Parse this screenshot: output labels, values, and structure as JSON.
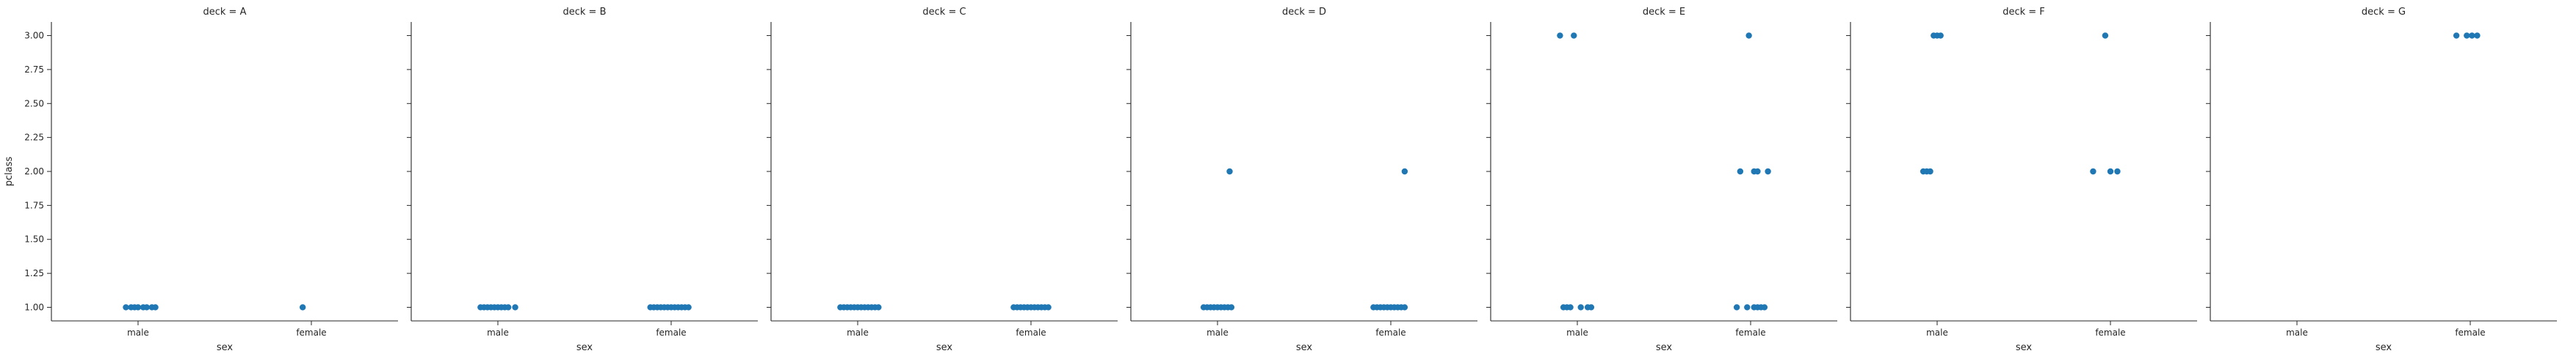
{
  "chart_data": {
    "type": "scatter",
    "kind": "strip",
    "x_var": "sex",
    "y_var": "pclass",
    "xlabel": "sex",
    "ylabel": "pclass",
    "categories": [
      "male",
      "female"
    ],
    "yticks": [
      "1.00",
      "1.25",
      "1.50",
      "1.75",
      "2.00",
      "2.25",
      "2.50",
      "2.75",
      "3.00"
    ],
    "ylim": [
      0.9,
      3.1
    ],
    "grid": false,
    "legend": "none",
    "point_color": "#1f77b4",
    "facets": [
      {
        "title": "deck = A",
        "points": [
          {
            "sex": "male",
            "jitter": -0.07,
            "pclass": 1
          },
          {
            "sex": "male",
            "jitter": -0.04,
            "pclass": 1
          },
          {
            "sex": "male",
            "jitter": -0.02,
            "pclass": 1
          },
          {
            "sex": "male",
            "jitter": 0.0,
            "pclass": 1
          },
          {
            "sex": "male",
            "jitter": 0.03,
            "pclass": 1
          },
          {
            "sex": "male",
            "jitter": 0.05,
            "pclass": 1
          },
          {
            "sex": "male",
            "jitter": 0.08,
            "pclass": 1
          },
          {
            "sex": "male",
            "jitter": 0.1,
            "pclass": 1
          },
          {
            "sex": "female",
            "jitter": -0.05,
            "pclass": 1
          }
        ]
      },
      {
        "title": "deck = B",
        "points": [
          {
            "sex": "male",
            "jitter": -0.1,
            "pclass": 1
          },
          {
            "sex": "male",
            "jitter": -0.08,
            "pclass": 1
          },
          {
            "sex": "male",
            "jitter": -0.06,
            "pclass": 1
          },
          {
            "sex": "male",
            "jitter": -0.04,
            "pclass": 1
          },
          {
            "sex": "male",
            "jitter": -0.02,
            "pclass": 1
          },
          {
            "sex": "male",
            "jitter": 0.0,
            "pclass": 1
          },
          {
            "sex": "male",
            "jitter": 0.02,
            "pclass": 1
          },
          {
            "sex": "male",
            "jitter": 0.04,
            "pclass": 1
          },
          {
            "sex": "male",
            "jitter": 0.06,
            "pclass": 1
          },
          {
            "sex": "male",
            "jitter": 0.1,
            "pclass": 1
          },
          {
            "sex": "female",
            "jitter": -0.12,
            "pclass": 1
          },
          {
            "sex": "female",
            "jitter": -0.1,
            "pclass": 1
          },
          {
            "sex": "female",
            "jitter": -0.08,
            "pclass": 1
          },
          {
            "sex": "female",
            "jitter": -0.06,
            "pclass": 1
          },
          {
            "sex": "female",
            "jitter": -0.04,
            "pclass": 1
          },
          {
            "sex": "female",
            "jitter": -0.02,
            "pclass": 1
          },
          {
            "sex": "female",
            "jitter": 0.0,
            "pclass": 1
          },
          {
            "sex": "female",
            "jitter": 0.02,
            "pclass": 1
          },
          {
            "sex": "female",
            "jitter": 0.04,
            "pclass": 1
          },
          {
            "sex": "female",
            "jitter": 0.06,
            "pclass": 1
          },
          {
            "sex": "female",
            "jitter": 0.08,
            "pclass": 1
          },
          {
            "sex": "female",
            "jitter": 0.1,
            "pclass": 1
          }
        ]
      },
      {
        "title": "deck = C",
        "points": [
          {
            "sex": "male",
            "jitter": -0.1,
            "pclass": 1
          },
          {
            "sex": "male",
            "jitter": -0.08,
            "pclass": 1
          },
          {
            "sex": "male",
            "jitter": -0.06,
            "pclass": 1
          },
          {
            "sex": "male",
            "jitter": -0.04,
            "pclass": 1
          },
          {
            "sex": "male",
            "jitter": -0.02,
            "pclass": 1
          },
          {
            "sex": "male",
            "jitter": 0.0,
            "pclass": 1
          },
          {
            "sex": "male",
            "jitter": 0.02,
            "pclass": 1
          },
          {
            "sex": "male",
            "jitter": 0.04,
            "pclass": 1
          },
          {
            "sex": "male",
            "jitter": 0.06,
            "pclass": 1
          },
          {
            "sex": "male",
            "jitter": 0.08,
            "pclass": 1
          },
          {
            "sex": "male",
            "jitter": 0.1,
            "pclass": 1
          },
          {
            "sex": "male",
            "jitter": 0.12,
            "pclass": 1
          },
          {
            "sex": "female",
            "jitter": -0.1,
            "pclass": 1
          },
          {
            "sex": "female",
            "jitter": -0.08,
            "pclass": 1
          },
          {
            "sex": "female",
            "jitter": -0.06,
            "pclass": 1
          },
          {
            "sex": "female",
            "jitter": -0.04,
            "pclass": 1
          },
          {
            "sex": "female",
            "jitter": -0.02,
            "pclass": 1
          },
          {
            "sex": "female",
            "jitter": 0.0,
            "pclass": 1
          },
          {
            "sex": "female",
            "jitter": 0.02,
            "pclass": 1
          },
          {
            "sex": "female",
            "jitter": 0.04,
            "pclass": 1
          },
          {
            "sex": "female",
            "jitter": 0.06,
            "pclass": 1
          },
          {
            "sex": "female",
            "jitter": 0.08,
            "pclass": 1
          },
          {
            "sex": "female",
            "jitter": 0.1,
            "pclass": 1
          }
        ]
      },
      {
        "title": "deck = D",
        "points": [
          {
            "sex": "male",
            "jitter": -0.08,
            "pclass": 1
          },
          {
            "sex": "male",
            "jitter": -0.06,
            "pclass": 1
          },
          {
            "sex": "male",
            "jitter": -0.04,
            "pclass": 1
          },
          {
            "sex": "male",
            "jitter": -0.02,
            "pclass": 1
          },
          {
            "sex": "male",
            "jitter": 0.0,
            "pclass": 1
          },
          {
            "sex": "male",
            "jitter": 0.02,
            "pclass": 1
          },
          {
            "sex": "male",
            "jitter": 0.04,
            "pclass": 1
          },
          {
            "sex": "male",
            "jitter": 0.06,
            "pclass": 1
          },
          {
            "sex": "male",
            "jitter": 0.08,
            "pclass": 1
          },
          {
            "sex": "male",
            "jitter": 0.07,
            "pclass": 2
          },
          {
            "sex": "female",
            "jitter": -0.1,
            "pclass": 1
          },
          {
            "sex": "female",
            "jitter": -0.08,
            "pclass": 1
          },
          {
            "sex": "female",
            "jitter": -0.06,
            "pclass": 1
          },
          {
            "sex": "female",
            "jitter": -0.04,
            "pclass": 1
          },
          {
            "sex": "female",
            "jitter": -0.02,
            "pclass": 1
          },
          {
            "sex": "female",
            "jitter": 0.0,
            "pclass": 1
          },
          {
            "sex": "female",
            "jitter": 0.02,
            "pclass": 1
          },
          {
            "sex": "female",
            "jitter": 0.04,
            "pclass": 1
          },
          {
            "sex": "female",
            "jitter": 0.06,
            "pclass": 1
          },
          {
            "sex": "female",
            "jitter": 0.08,
            "pclass": 1
          },
          {
            "sex": "female",
            "jitter": 0.08,
            "pclass": 2
          }
        ]
      },
      {
        "title": "deck = E",
        "points": [
          {
            "sex": "male",
            "jitter": -0.08,
            "pclass": 1
          },
          {
            "sex": "male",
            "jitter": -0.06,
            "pclass": 1
          },
          {
            "sex": "male",
            "jitter": -0.04,
            "pclass": 1
          },
          {
            "sex": "male",
            "jitter": 0.02,
            "pclass": 1
          },
          {
            "sex": "male",
            "jitter": 0.06,
            "pclass": 1
          },
          {
            "sex": "male",
            "jitter": 0.08,
            "pclass": 1
          },
          {
            "sex": "male",
            "jitter": -0.1,
            "pclass": 3
          },
          {
            "sex": "male",
            "jitter": -0.02,
            "pclass": 3
          },
          {
            "sex": "female",
            "jitter": -0.08,
            "pclass": 1
          },
          {
            "sex": "female",
            "jitter": -0.02,
            "pclass": 1
          },
          {
            "sex": "female",
            "jitter": 0.02,
            "pclass": 1
          },
          {
            "sex": "female",
            "jitter": 0.04,
            "pclass": 1
          },
          {
            "sex": "female",
            "jitter": 0.06,
            "pclass": 1
          },
          {
            "sex": "female",
            "jitter": 0.08,
            "pclass": 1
          },
          {
            "sex": "female",
            "jitter": -0.06,
            "pclass": 2
          },
          {
            "sex": "female",
            "jitter": 0.02,
            "pclass": 2
          },
          {
            "sex": "female",
            "jitter": 0.04,
            "pclass": 2
          },
          {
            "sex": "female",
            "jitter": 0.1,
            "pclass": 2
          },
          {
            "sex": "female",
            "jitter": -0.01,
            "pclass": 3
          }
        ]
      },
      {
        "title": "deck = F",
        "points": [
          {
            "sex": "male",
            "jitter": -0.08,
            "pclass": 2
          },
          {
            "sex": "male",
            "jitter": -0.06,
            "pclass": 2
          },
          {
            "sex": "male",
            "jitter": -0.04,
            "pclass": 2
          },
          {
            "sex": "male",
            "jitter": -0.02,
            "pclass": 3
          },
          {
            "sex": "male",
            "jitter": 0.0,
            "pclass": 3
          },
          {
            "sex": "male",
            "jitter": 0.02,
            "pclass": 3
          },
          {
            "sex": "female",
            "jitter": -0.1,
            "pclass": 2
          },
          {
            "sex": "female",
            "jitter": 0.0,
            "pclass": 2
          },
          {
            "sex": "female",
            "jitter": 0.04,
            "pclass": 2
          },
          {
            "sex": "female",
            "jitter": -0.03,
            "pclass": 3
          }
        ]
      },
      {
        "title": "deck = G",
        "points": [
          {
            "sex": "female",
            "jitter": -0.08,
            "pclass": 3
          },
          {
            "sex": "female",
            "jitter": -0.02,
            "pclass": 3
          },
          {
            "sex": "female",
            "jitter": 0.01,
            "pclass": 3
          },
          {
            "sex": "female",
            "jitter": 0.04,
            "pclass": 3
          }
        ]
      }
    ]
  }
}
